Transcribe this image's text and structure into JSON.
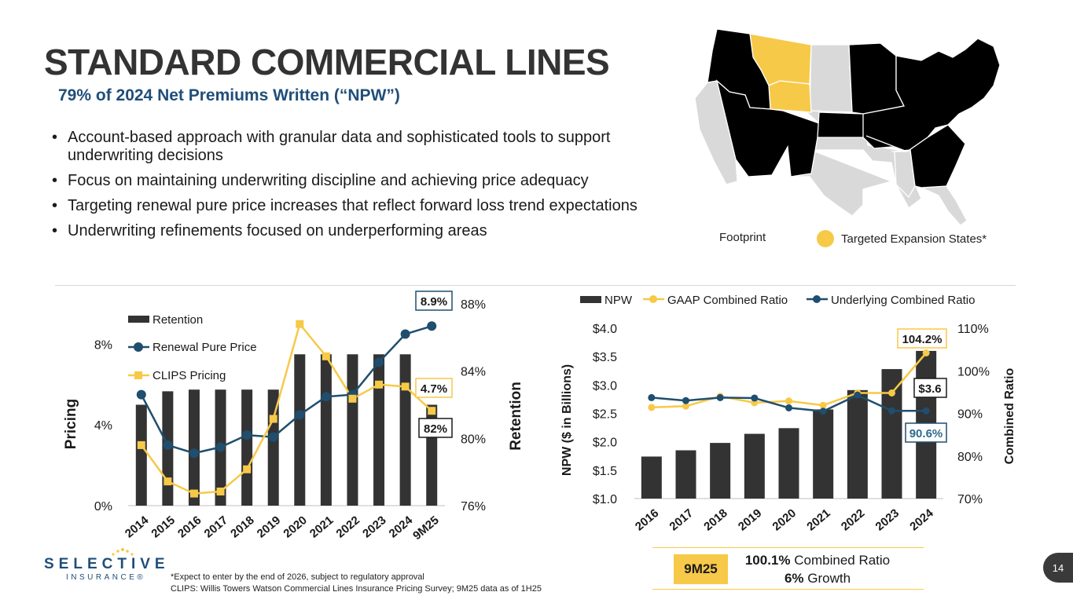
{
  "header": {
    "title": "STANDARD COMMERCIAL LINES",
    "subtitle": "79% of 2024 Net Premiums Written (“NPW”)"
  },
  "bullets": [
    "Account-based approach with granular data and sophisticated tools to support underwriting decisions",
    "Focus on maintaining underwriting discipline and achieving price adequacy",
    "Targeting renewal pure price increases that reflect forward loss trend expectations",
    "Underwriting refinements focused on underperforming areas"
  ],
  "map": {
    "legend": [
      {
        "label": "Footprint",
        "color": "#000000"
      },
      {
        "label": "Targeted Expansion States*",
        "color": "#f7c948"
      }
    ],
    "colors": {
      "footprint": "#000000",
      "expansion": "#f7c948",
      "other": "#d9d9d9"
    }
  },
  "chart_data": [
    {
      "type": "bar+line",
      "categories": [
        "2014",
        "2015",
        "2016",
        "2017",
        "2018",
        "2019",
        "2020",
        "2021",
        "2022",
        "2023",
        "2024",
        "9M25"
      ],
      "series": [
        {
          "name": "Retention",
          "type": "bar",
          "axis": "right",
          "color": "#333333",
          "values": [
            82.0,
            82.8,
            82.9,
            82.9,
            82.9,
            82.9,
            85.0,
            85.0,
            85.0,
            85.0,
            85.0,
            82.0
          ]
        },
        {
          "name": "Renewal Pure Price",
          "type": "line",
          "axis": "left",
          "color": "#1f4e6e",
          "values": [
            5.5,
            3.0,
            2.6,
            2.9,
            3.5,
            3.4,
            4.5,
            5.4,
            5.5,
            7.1,
            8.5,
            8.9
          ]
        },
        {
          "name": "CLIPS Pricing",
          "type": "line",
          "axis": "left",
          "color": "#f7c948",
          "values": [
            3.0,
            1.2,
            0.6,
            0.7,
            1.8,
            4.3,
            9.0,
            7.4,
            5.3,
            6.0,
            5.9,
            4.7
          ]
        }
      ],
      "ylabel_left": "Pricing",
      "ylabel_right": "Retention",
      "yticks_left": [
        "0%",
        "4%",
        "8%"
      ],
      "ylim_left": [
        0,
        10
      ],
      "yticks_right": [
        "76%",
        "80%",
        "84%",
        "88%"
      ],
      "ylim_right": [
        76,
        88
      ],
      "callouts": [
        "8.9%",
        "4.7%",
        "82%"
      ],
      "legend_position": "top-left"
    },
    {
      "type": "bar+line",
      "categories": [
        "2016",
        "2017",
        "2018",
        "2019",
        "2020",
        "2021",
        "2022",
        "2023",
        "2024"
      ],
      "series": [
        {
          "name": "NPW",
          "type": "bar",
          "axis": "left",
          "color": "#333333",
          "values": [
            1.74,
            1.85,
            1.98,
            2.14,
            2.24,
            2.57,
            2.91,
            3.28,
            3.6
          ]
        },
        {
          "name": "GAAP Combined Ratio",
          "type": "line",
          "axis": "right",
          "color": "#f7c948",
          "values": [
            91.4,
            91.7,
            94.0,
            92.5,
            92.9,
            91.9,
            94.8,
            94.8,
            104.2
          ]
        },
        {
          "name": "Underlying Combined Ratio",
          "type": "line",
          "axis": "right",
          "color": "#1f4e6e",
          "values": [
            93.7,
            93.0,
            93.7,
            93.6,
            91.3,
            90.5,
            94.3,
            90.6,
            90.6
          ]
        }
      ],
      "ylabel_left": "NPW ($ in Billions)",
      "ylabel_right": "Combined Ratio",
      "yticks_left": [
        "$1.0",
        "$1.5",
        "$2.0",
        "$2.5",
        "$3.0",
        "$3.5",
        "$4.0"
      ],
      "ylim_left": [
        1.0,
        4.0
      ],
      "yticks_right": [
        "70%",
        "80%",
        "90%",
        "100%",
        "110%"
      ],
      "ylim_right": [
        70,
        110
      ],
      "callouts": [
        "104.2%",
        "$3.6",
        "90.6%"
      ],
      "legend_position": "top"
    }
  ],
  "nine_month": {
    "label": "9M25",
    "line1_value": "100.1%",
    "line1_text": " Combined Ratio",
    "line2_value": "6%",
    "line2_text": " Growth"
  },
  "logo": {
    "word": "SELECTIVE",
    "sub": "INSURANCE®"
  },
  "footnotes": [
    "*Expect to enter by the end of 2026, subject to regulatory approval",
    "CLIPS: Willis Towers Watson Commercial Lines Insurance Pricing Survey; 9M25 data as of 1H25"
  ],
  "page_number": "14"
}
